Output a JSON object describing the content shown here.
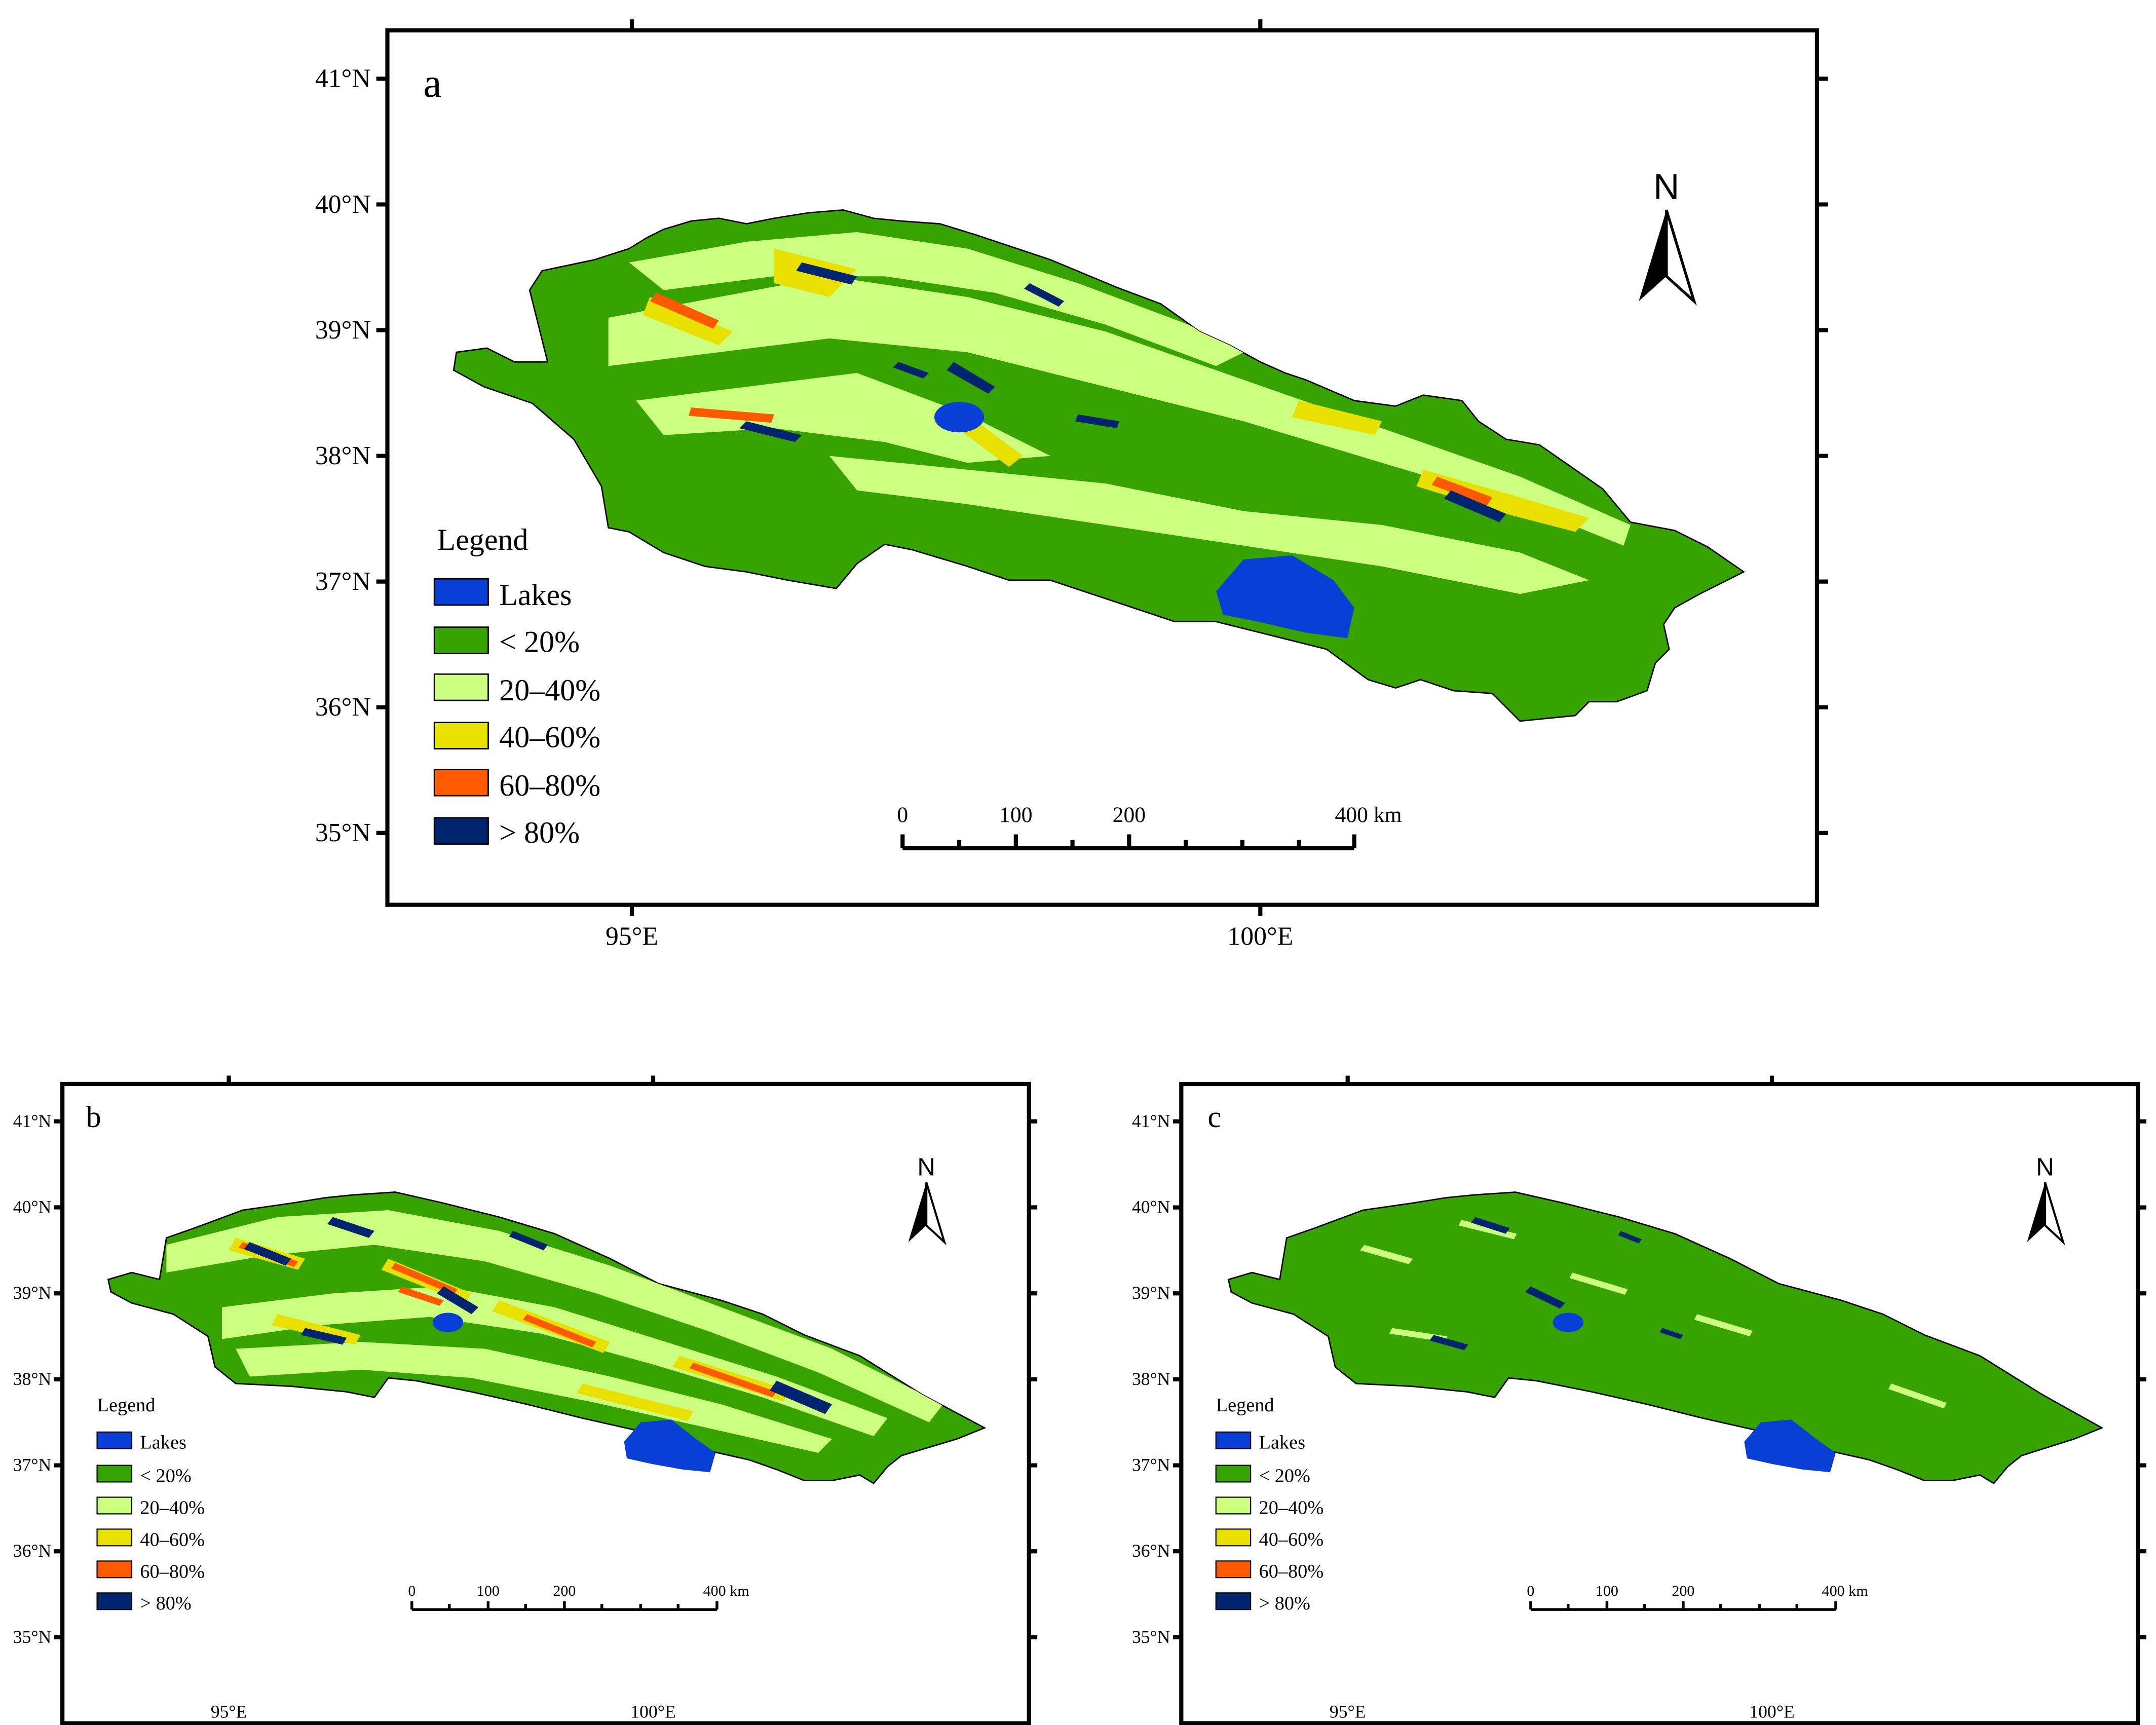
{
  "colors": {
    "lakes": "#0a3fd6",
    "lt20": "#37a300",
    "p20_40": "#ccff80",
    "p40_60": "#e8e000",
    "p60_80": "#ff5a00",
    "gt80": "#00246e"
  },
  "panels": [
    {
      "id": "a",
      "label": "a",
      "lat_labels": [
        "41°N",
        "40°N",
        "39°N",
        "38°N",
        "37°N",
        "36°N",
        "35°N"
      ],
      "lon_labels": [
        "95°E",
        "100°E"
      ],
      "north_label": "N",
      "legend": {
        "title": "Legend",
        "items": [
          {
            "key": "lakes",
            "label": "Lakes"
          },
          {
            "key": "lt20",
            "label": "< 20%"
          },
          {
            "key": "p20_40",
            "label": "20–40%"
          },
          {
            "key": "p40_60",
            "label": "40–60%"
          },
          {
            "key": "p60_80",
            "label": "60–80%"
          },
          {
            "key": "gt80",
            "label": "> 80%"
          }
        ]
      },
      "scale": {
        "labels": [
          "0",
          "100",
          "200",
          "400 km"
        ]
      }
    },
    {
      "id": "b",
      "label": "b",
      "lat_labels": [
        "41°N",
        "40°N",
        "39°N",
        "38°N",
        "37°N",
        "36°N",
        "35°N"
      ],
      "lon_labels": [
        "95°E",
        "100°E"
      ],
      "north_label": "N",
      "legend": {
        "title": "Legend",
        "items": [
          {
            "key": "lakes",
            "label": "Lakes"
          },
          {
            "key": "lt20",
            "label": "< 20%"
          },
          {
            "key": "p20_40",
            "label": "20–40%"
          },
          {
            "key": "p40_60",
            "label": "40–60%"
          },
          {
            "key": "p60_80",
            "label": "60–80%"
          },
          {
            "key": "gt80",
            "label": "> 80%"
          }
        ]
      },
      "scale": {
        "labels": [
          "0",
          "100",
          "200",
          "400 km"
        ]
      }
    },
    {
      "id": "c",
      "label": "c",
      "lat_labels": [
        "41°N",
        "40°N",
        "39°N",
        "38°N",
        "37°N",
        "36°N",
        "35°N"
      ],
      "lon_labels": [
        "95°E",
        "100°E"
      ],
      "north_label": "N",
      "legend": {
        "title": "Legend",
        "items": [
          {
            "key": "lakes",
            "label": "Lakes"
          },
          {
            "key": "lt20",
            "label": "< 20%"
          },
          {
            "key": "p20_40",
            "label": "20–40%"
          },
          {
            "key": "p40_60",
            "label": "40–60%"
          },
          {
            "key": "p60_80",
            "label": "60–80%"
          },
          {
            "key": "gt80",
            "label": "> 80%"
          }
        ]
      },
      "scale": {
        "labels": [
          "0",
          "100",
          "200",
          "400 km"
        ]
      }
    }
  ]
}
